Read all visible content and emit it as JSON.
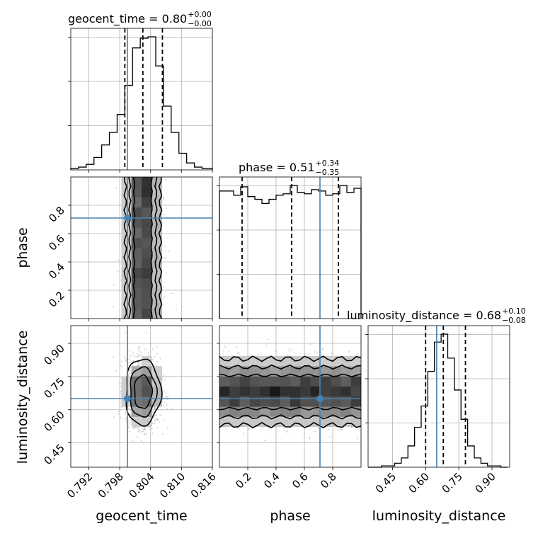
{
  "chart_data": {
    "type": "corner",
    "parameters": [
      "geocent_time",
      "phase",
      "luminosity_distance"
    ],
    "titles": [
      {
        "name": "geocent_time",
        "median": "0.80",
        "plus": "+0.00",
        "minus": "−0.00"
      },
      {
        "name": "phase",
        "median": "0.51",
        "plus": "+0.34",
        "minus": "−0.35"
      },
      {
        "name": "luminosity_distance",
        "median": "0.68",
        "plus": "+0.10",
        "minus": "−0.08"
      }
    ],
    "ranges": {
      "geocent_time": [
        0.7885,
        0.816
      ],
      "phase": [
        0.0,
        1.0
      ],
      "luminosity_distance": [
        0.34,
        0.98
      ]
    },
    "ticks": {
      "geocent_time": [
        0.792,
        0.798,
        0.804,
        0.81,
        0.816
      ],
      "geocent_time_labels": [
        "0.792",
        "0.798",
        "0.804",
        "0.810",
        "0.816"
      ],
      "phase": [
        0.2,
        0.4,
        0.6,
        0.8
      ],
      "phase_labels": [
        "0.2",
        "0.4",
        "0.6",
        "0.8"
      ],
      "luminosity_distance": [
        0.45,
        0.6,
        0.75,
        0.9
      ],
      "luminosity_distance_labels": [
        "0.45",
        "0.60",
        "0.75",
        "0.90"
      ]
    },
    "truths": {
      "geocent_time": 0.7995,
      "phase": 0.71,
      "luminosity_distance": 0.65
    },
    "quantiles": {
      "geocent_time": [
        0.799,
        0.8025,
        0.8063
      ],
      "phase": [
        0.16,
        0.51,
        0.84
      ],
      "luminosity_distance": [
        0.6,
        0.68,
        0.78
      ]
    },
    "histograms": {
      "geocent_time": {
        "edges": [
          0.7885,
          0.79,
          0.7915,
          0.793,
          0.7945,
          0.796,
          0.7975,
          0.799,
          0.8005,
          0.802,
          0.8035,
          0.805,
          0.8065,
          0.808,
          0.8095,
          0.811,
          0.8125,
          0.814,
          0.816
        ],
        "counts": [
          1,
          2,
          4,
          9,
          18,
          27,
          40,
          61,
          88,
          95,
          96,
          75,
          46,
          27,
          12,
          5,
          2,
          1
        ]
      },
      "phase": {
        "edges": [
          0.0,
          0.05,
          0.1,
          0.15,
          0.2,
          0.25,
          0.3,
          0.35,
          0.4,
          0.45,
          0.5,
          0.55,
          0.6,
          0.65,
          0.7,
          0.75,
          0.8,
          0.85,
          0.9,
          0.95,
          1.0
        ],
        "counts": [
          92,
          92,
          89,
          95,
          88,
          86,
          83,
          86,
          89,
          90,
          96,
          91,
          90,
          93,
          92,
          89,
          90,
          96,
          91,
          94
        ]
      },
      "luminosity_distance": {
        "edges": [
          0.34,
          0.37,
          0.4,
          0.43,
          0.46,
          0.49,
          0.52,
          0.55,
          0.58,
          0.61,
          0.64,
          0.67,
          0.7,
          0.73,
          0.76,
          0.79,
          0.82,
          0.85,
          0.88,
          0.91,
          0.94,
          0.97
        ],
        "counts": [
          0,
          0,
          1,
          1,
          3,
          7,
          16,
          30,
          46,
          72,
          94,
          100,
          82,
          58,
          36,
          16,
          7,
          3,
          1,
          1,
          0
        ]
      }
    },
    "xlabels": [
      "geocent_time",
      "phase",
      "luminosity_distance"
    ],
    "ylabels": [
      "phase",
      "luminosity_distance"
    ],
    "grid": true
  }
}
